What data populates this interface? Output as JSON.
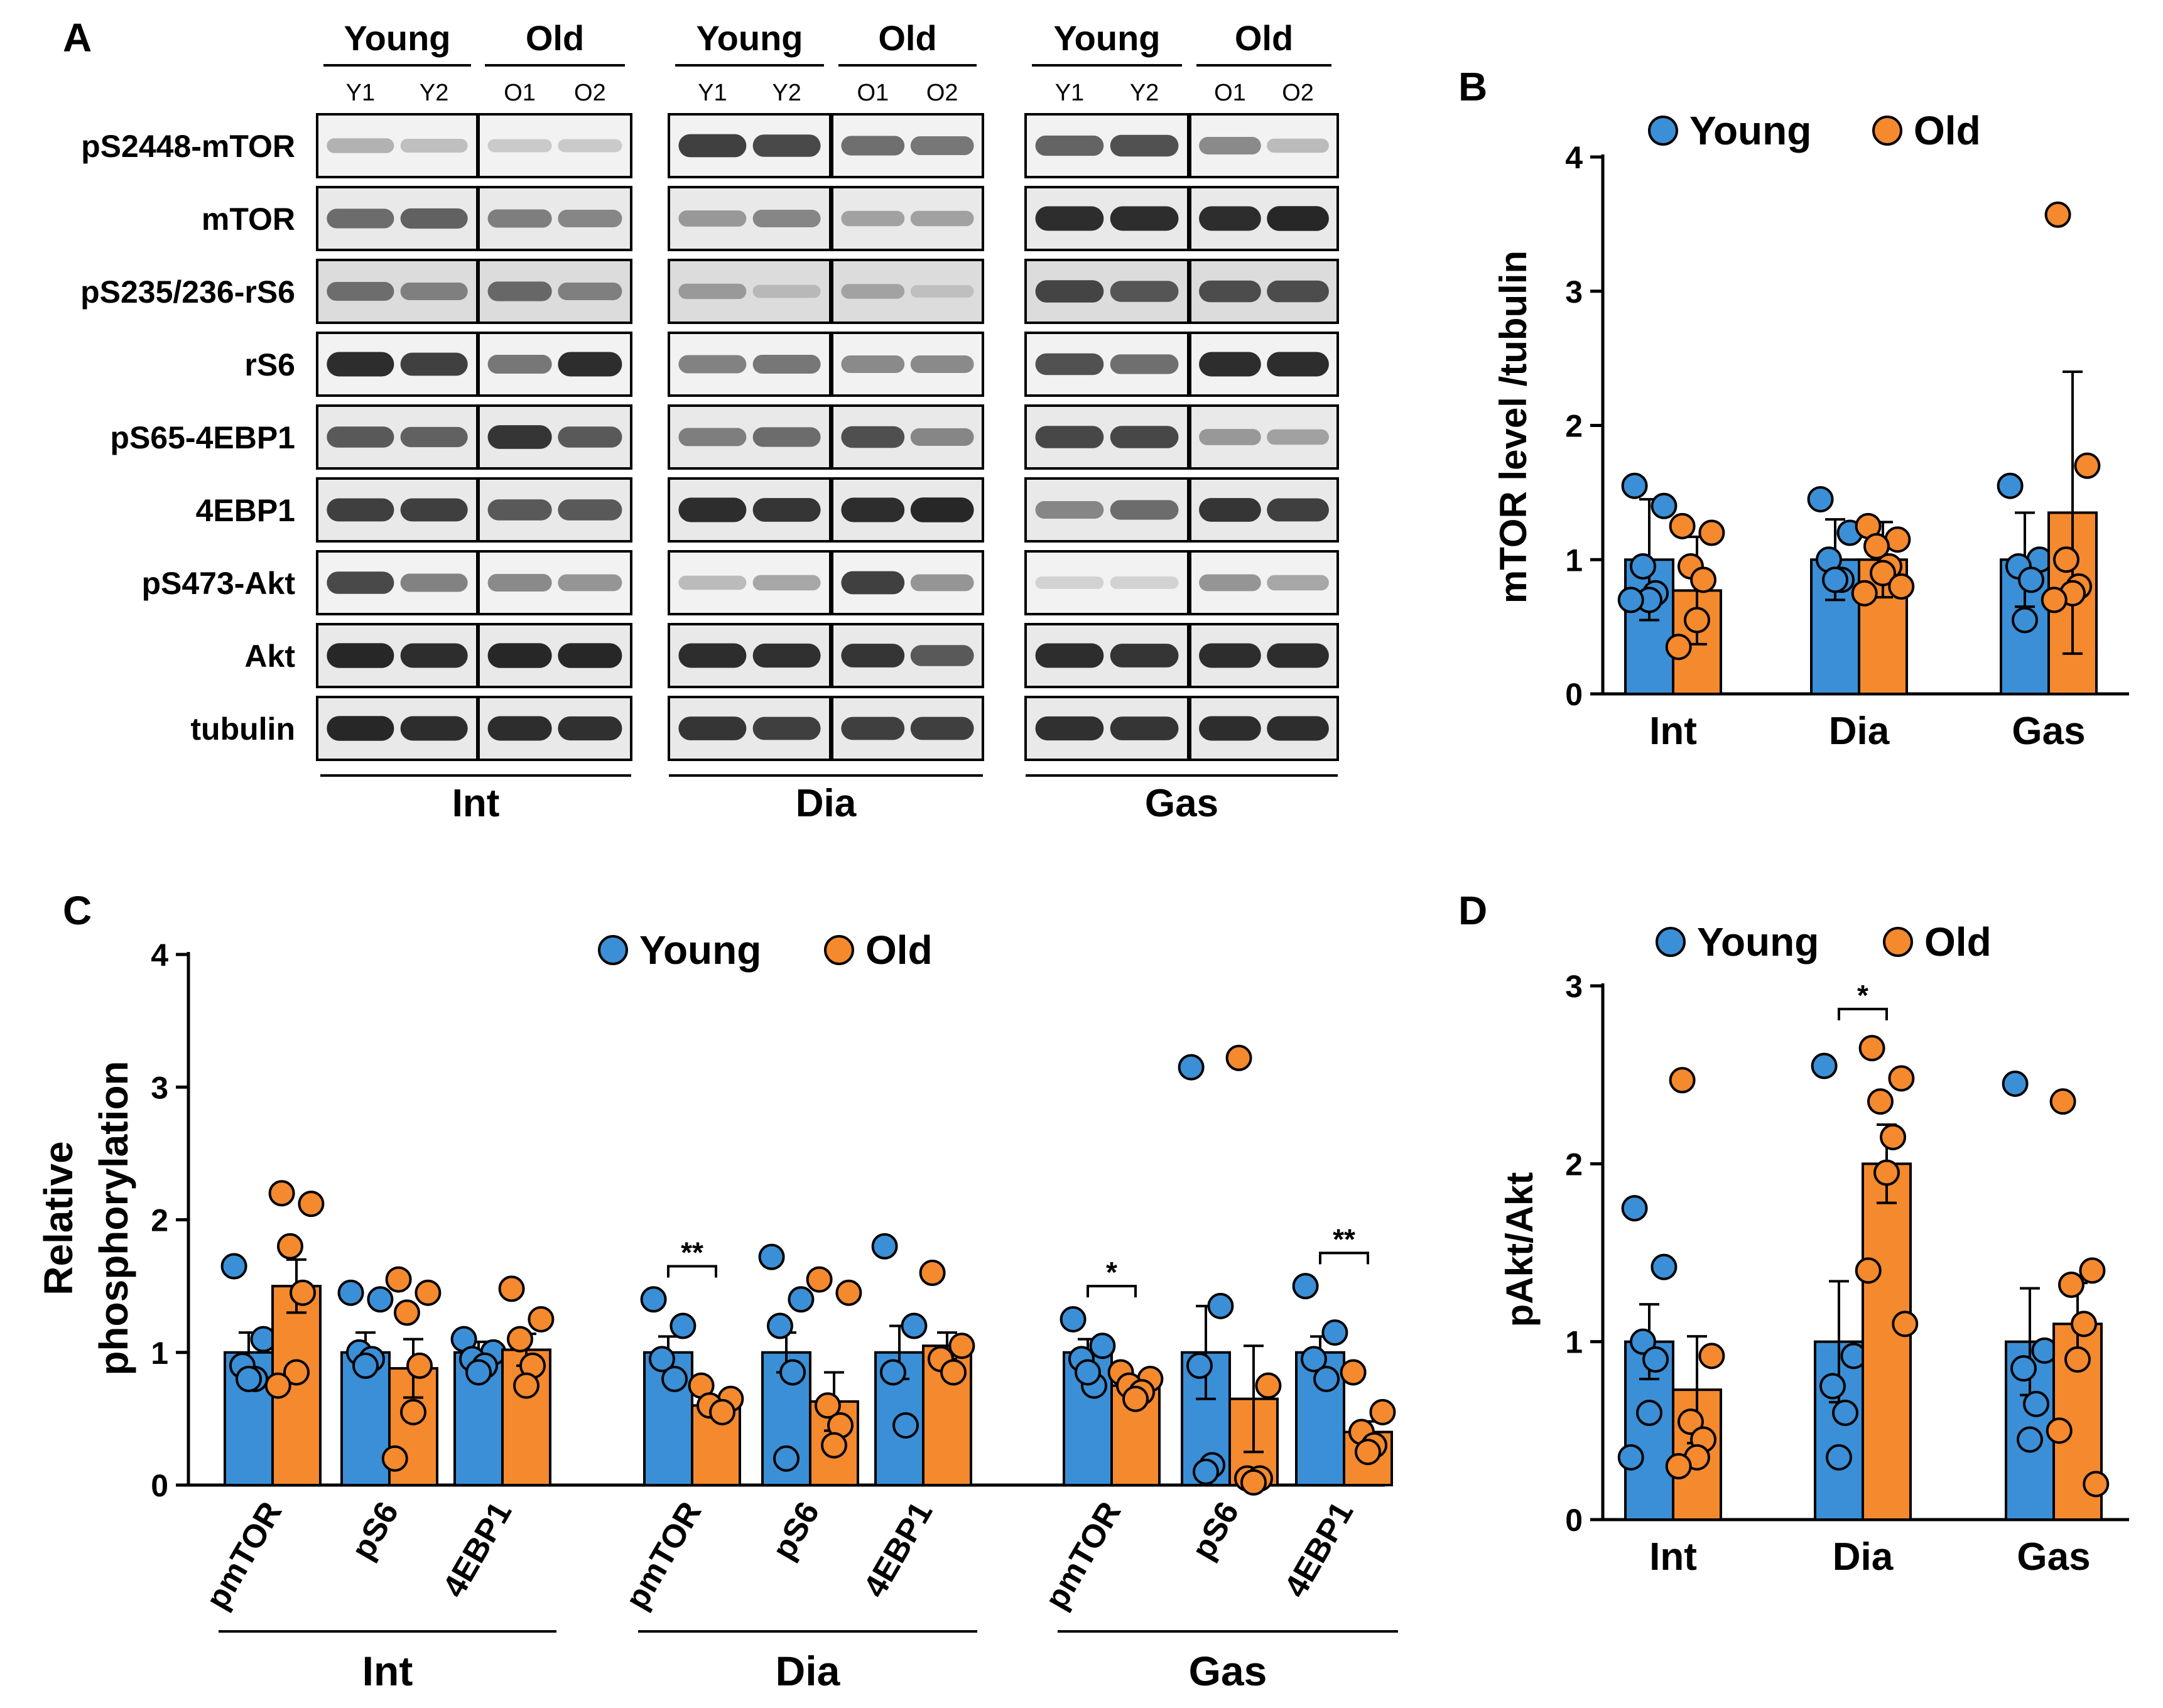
{
  "colors": {
    "young": "#3b8fd6",
    "old": "#f4892e",
    "axis": "#000000",
    "band": "#1e1e1e"
  },
  "panelA": {
    "label": "A",
    "proteins": [
      "pS2448-mTOR",
      "mTOR",
      "pS235/236-rS6",
      "rS6",
      "pS65-4EBP1",
      "4EBP1",
      "pS473-Akt",
      "Akt",
      "tubulin"
    ],
    "tissues": [
      "Int",
      "Dia",
      "Gas"
    ],
    "groups": [
      "Young",
      "Old"
    ],
    "lanes": [
      "Y1",
      "Y2",
      "O1",
      "O2"
    ],
    "band_intensity": [
      [
        [
          0.25,
          0.18,
          0.12,
          0.12
        ],
        [
          0.85,
          0.8,
          0.6,
          0.55
        ],
        [
          0.65,
          0.75,
          0.45,
          0.2
        ]
      ],
      [
        [
          0.6,
          0.65,
          0.5,
          0.45
        ],
        [
          0.35,
          0.45,
          0.3,
          0.3
        ],
        [
          0.95,
          0.95,
          0.95,
          0.98
        ]
      ],
      [
        [
          0.55,
          0.45,
          0.6,
          0.45
        ],
        [
          0.3,
          0.12,
          0.25,
          0.08
        ],
        [
          0.8,
          0.7,
          0.75,
          0.75
        ]
      ],
      [
        [
          0.95,
          0.85,
          0.55,
          0.95
        ],
        [
          0.5,
          0.55,
          0.45,
          0.45
        ],
        [
          0.75,
          0.6,
          0.95,
          0.95
        ]
      ],
      [
        [
          0.7,
          0.65,
          0.9,
          0.7
        ],
        [
          0.5,
          0.6,
          0.75,
          0.45
        ],
        [
          0.8,
          0.8,
          0.35,
          0.3
        ]
      ],
      [
        [
          0.85,
          0.85,
          0.7,
          0.7
        ],
        [
          0.95,
          0.9,
          0.95,
          0.98
        ],
        [
          0.45,
          0.6,
          0.9,
          0.85
        ]
      ],
      [
        [
          0.8,
          0.5,
          0.45,
          0.4
        ],
        [
          0.2,
          0.3,
          0.85,
          0.4
        ],
        [
          0.08,
          0.08,
          0.4,
          0.3
        ]
      ],
      [
        [
          0.98,
          0.95,
          0.98,
          0.98
        ],
        [
          0.95,
          0.92,
          0.9,
          0.7
        ],
        [
          0.95,
          0.9,
          0.95,
          0.95
        ]
      ],
      [
        [
          0.98,
          0.95,
          0.95,
          0.92
        ],
        [
          0.9,
          0.85,
          0.85,
          0.85
        ],
        [
          0.92,
          0.9,
          0.95,
          0.95
        ]
      ]
    ]
  },
  "chart_data": [
    {
      "panel": "B",
      "type": "bar",
      "title": "",
      "ylabel": "mTOR  level /tubulin",
      "ylim": [
        0,
        4
      ],
      "yticks": [
        "0",
        "1",
        "2",
        "3",
        "4"
      ],
      "categories": [
        "Int",
        "Dia",
        "Gas"
      ],
      "legend": {
        "position": "top",
        "entries": [
          "Young",
          "Old"
        ]
      },
      "series": [
        {
          "name": "Young",
          "values": [
            1.0,
            1.0,
            1.0
          ],
          "err": [
            0.45,
            0.3,
            0.35
          ],
          "points": [
            [
              1.55,
              1.4,
              0.95,
              0.75,
              0.7,
              0.7
            ],
            [
              1.45,
              1.2,
              1.0,
              0.85,
              0.85
            ],
            [
              1.55,
              1.0,
              0.95,
              0.85,
              0.55
            ]
          ]
        },
        {
          "name": "Old",
          "values": [
            0.77,
            1.0,
            1.35
          ],
          "err": [
            0.4,
            0.28,
            1.05
          ],
          "points": [
            [
              1.25,
              1.2,
              0.95,
              0.85,
              0.55,
              0.35
            ],
            [
              1.25,
              1.15,
              1.1,
              0.95,
              0.9,
              0.75,
              0.8
            ],
            [
              3.57,
              1.7,
              1.0,
              0.8,
              0.75,
              0.7
            ]
          ]
        }
      ],
      "significance": []
    },
    {
      "panel": "C",
      "type": "bar",
      "title": "",
      "ylabel": "Relative phosphorylation",
      "ylim": [
        0,
        4
      ],
      "yticks": [
        "0",
        "1",
        "2",
        "3",
        "4"
      ],
      "categories": [
        "pmTOR",
        "pS6",
        "4EBP1",
        "pmTOR",
        "pS6",
        "4EBP1",
        "pmTOR",
        "pS6",
        "4EBP1"
      ],
      "groups": [
        {
          "label": "Int",
          "from": 0,
          "to": 2
        },
        {
          "label": "Dia",
          "from": 3,
          "to": 5
        },
        {
          "label": "Gas",
          "from": 6,
          "to": 8
        }
      ],
      "legend": {
        "position": "top",
        "entries": [
          "Young",
          "Old"
        ]
      },
      "series": [
        {
          "name": "Young",
          "values": [
            1.0,
            1.0,
            1.0,
            1.0,
            1.0,
            1.0,
            1.0,
            1.0,
            1.0
          ],
          "err": [
            0.15,
            0.15,
            0.08,
            0.12,
            0.15,
            0.2,
            0.1,
            0.35,
            0.12
          ],
          "points": [
            [
              1.65,
              1.1,
              0.9,
              0.8,
              0.8
            ],
            [
              1.45,
              1.4,
              1.0,
              0.95,
              0.9
            ],
            [
              1.1,
              1.0,
              0.95,
              0.9,
              0.85
            ],
            [
              1.4,
              1.2,
              0.95,
              0.8
            ],
            [
              1.72,
              1.4,
              1.2,
              0.85,
              0.2
            ],
            [
              1.8,
              1.2,
              0.85,
              0.45
            ],
            [
              1.25,
              1.05,
              0.95,
              0.75,
              0.85
            ],
            [
              3.15,
              1.35,
              0.9,
              0.15,
              0.1
            ],
            [
              1.5,
              1.15,
              0.95,
              0.8
            ]
          ]
        },
        {
          "name": "Old",
          "values": [
            1.5,
            0.88,
            1.02,
            0.6,
            0.63,
            1.05,
            0.75,
            0.65,
            0.4
          ],
          "err": [
            0.2,
            0.22,
            0.12,
            0.06,
            0.22,
            0.1,
            0.05,
            0.4,
            0.08
          ],
          "points": [
            [
              2.2,
              2.12,
              1.8,
              1.45,
              0.85,
              0.75
            ],
            [
              1.55,
              1.45,
              1.3,
              0.9,
              0.55,
              0.2
            ],
            [
              1.48,
              1.25,
              1.1,
              0.9,
              0.75
            ],
            [
              0.75,
              0.65,
              0.6,
              0.55
            ],
            [
              1.55,
              1.45,
              0.6,
              0.45,
              0.3
            ],
            [
              1.6,
              1.05,
              0.95,
              0.85
            ],
            [
              0.85,
              0.8,
              0.75,
              0.7,
              0.65
            ],
            [
              3.22,
              0.75,
              0.05,
              0.05,
              0.02
            ],
            [
              0.85,
              0.55,
              0.4,
              0.3,
              0.25
            ]
          ]
        }
      ],
      "significance": [
        {
          "index": 3,
          "label": "**"
        },
        {
          "index": 6,
          "label": "*"
        },
        {
          "index": 8,
          "label": "**"
        }
      ]
    },
    {
      "panel": "D",
      "type": "bar",
      "title": "",
      "ylabel": "pAkt/Akt",
      "ylim": [
        0,
        3
      ],
      "yticks": [
        "0",
        "1",
        "2",
        "3"
      ],
      "categories": [
        "Int",
        "Dia",
        "Gas"
      ],
      "legend": {
        "position": "top",
        "entries": [
          "Young",
          "Old"
        ]
      },
      "series": [
        {
          "name": "Young",
          "values": [
            1.0,
            1.0,
            1.0
          ],
          "err": [
            0.21,
            0.34,
            0.3
          ],
          "points": [
            [
              1.75,
              1.42,
              1.0,
              0.9,
              0.6,
              0.35
            ],
            [
              2.55,
              0.92,
              0.75,
              0.6,
              0.35
            ],
            [
              2.45,
              0.95,
              0.85,
              0.65,
              0.45
            ]
          ]
        },
        {
          "name": "Old",
          "values": [
            0.73,
            2.0,
            1.1
          ],
          "err": [
            0.3,
            0.22,
            0.23
          ],
          "points": [
            [
              2.47,
              0.92,
              0.55,
              0.45,
              0.35,
              0.3
            ],
            [
              2.65,
              2.48,
              2.35,
              2.15,
              1.95,
              1.4,
              1.1
            ],
            [
              2.35,
              1.4,
              1.32,
              1.1,
              0.9,
              0.5,
              0.2
            ]
          ]
        }
      ],
      "significance": [
        {
          "index": 1,
          "label": "*"
        }
      ]
    }
  ]
}
